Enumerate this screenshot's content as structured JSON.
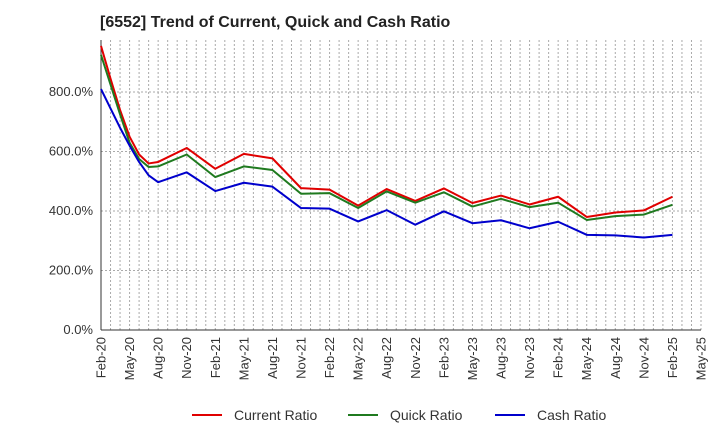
{
  "chart_data": {
    "type": "line",
    "title": "[6552]  Trend of Current, Quick and Cash Ratio",
    "xlabel": "",
    "ylabel": "",
    "ylim": [
      0,
      975
    ],
    "yticks": [
      0,
      200,
      400,
      600,
      800
    ],
    "ytick_labels": [
      "0.0%",
      "200.0%",
      "400.0%",
      "600.0%",
      "800.0%"
    ],
    "xtick_labels": [
      "Feb-20",
      "May-20",
      "Aug-20",
      "Nov-20",
      "Feb-21",
      "May-21",
      "Aug-21",
      "Nov-21",
      "Feb-22",
      "May-22",
      "Aug-22",
      "Nov-22",
      "Feb-23",
      "May-23",
      "Aug-23",
      "Nov-23",
      "Feb-24",
      "May-24",
      "Aug-24",
      "Nov-24",
      "Feb-25",
      "May-25"
    ],
    "grid": true,
    "legend_position": "bottom",
    "x": [
      "Feb-20",
      "Mar-20",
      "Apr-20",
      "May-20",
      "Jun-20",
      "Jul-20",
      "Aug-20",
      "Nov-20",
      "Feb-21",
      "May-21",
      "Aug-21",
      "Nov-21",
      "Feb-22",
      "May-22",
      "Aug-22",
      "Nov-22",
      "Feb-23",
      "May-23",
      "Aug-23",
      "Nov-23",
      "Feb-24",
      "May-24",
      "Aug-24",
      "Nov-24",
      "Feb-25"
    ],
    "x_index": [
      0,
      1,
      2,
      3,
      4,
      5,
      6,
      9,
      12,
      15,
      18,
      21,
      24,
      27,
      30,
      33,
      36,
      39,
      42,
      45,
      48,
      51,
      54,
      57,
      60
    ],
    "x_index_max": 63,
    "series": [
      {
        "name": "Current Ratio",
        "color": "#e00000",
        "values": [
          955,
          845,
          740,
          650,
          590,
          560,
          565,
          612,
          542,
          592,
          577,
          477,
          472,
          418,
          474,
          434,
          476,
          427,
          452,
          422,
          448,
          380,
          395,
          402,
          448
        ]
      },
      {
        "name": "Quick Ratio",
        "color": "#1f7a1f",
        "values": [
          925,
          825,
          725,
          630,
          575,
          548,
          550,
          590,
          514,
          550,
          538,
          458,
          460,
          410,
          466,
          428,
          463,
          415,
          441,
          413,
          428,
          370,
          383,
          388,
          421
        ]
      },
      {
        "name": "Cash Ratio",
        "color": "#0000cc",
        "values": [
          810,
          745,
          680,
          620,
          565,
          520,
          497,
          530,
          467,
          495,
          482,
          410,
          408,
          365,
          403,
          354,
          399,
          359,
          369,
          342,
          364,
          320,
          318,
          311,
          320
        ]
      }
    ]
  }
}
